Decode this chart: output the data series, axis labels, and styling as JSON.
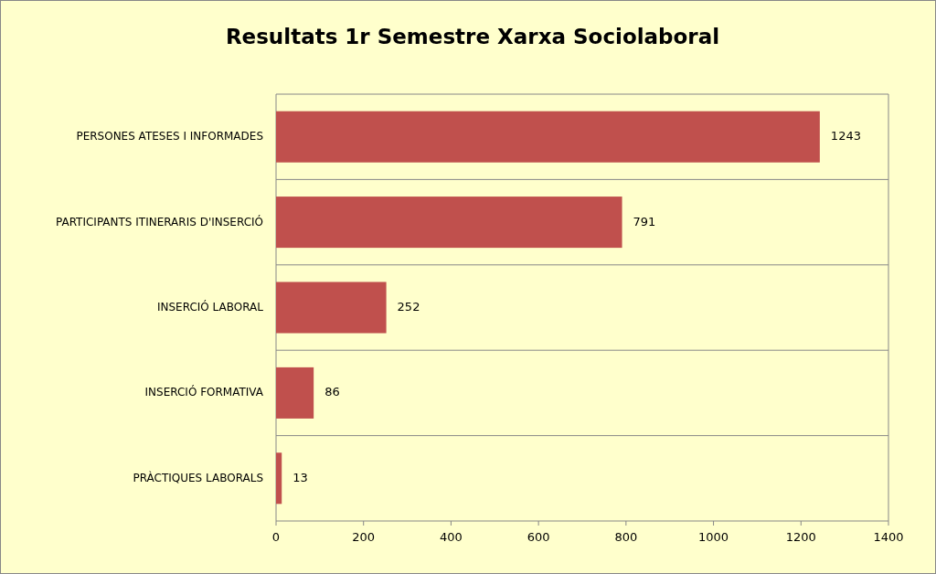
{
  "chart_data": {
    "type": "bar",
    "orientation": "horizontal",
    "title": "Resultats 1r Semestre Xarxa Sociolaboral",
    "categories": [
      "PERSONES ATESES I INFORMADES",
      "PARTICIPANTS ITINERARIS D'INSERCIÓ",
      "INSERCIÓ LABORAL",
      "INSERCIÓ FORMATIVA",
      "PRÀCTIQUES LABORALS"
    ],
    "values": [
      1243,
      791,
      252,
      86,
      13
    ],
    "color": "#c0504d",
    "xlim": [
      0,
      1400
    ],
    "xticks": [
      0,
      200,
      400,
      600,
      800,
      1000,
      1200,
      1400
    ],
    "grid": "y",
    "data_labels": true
  }
}
